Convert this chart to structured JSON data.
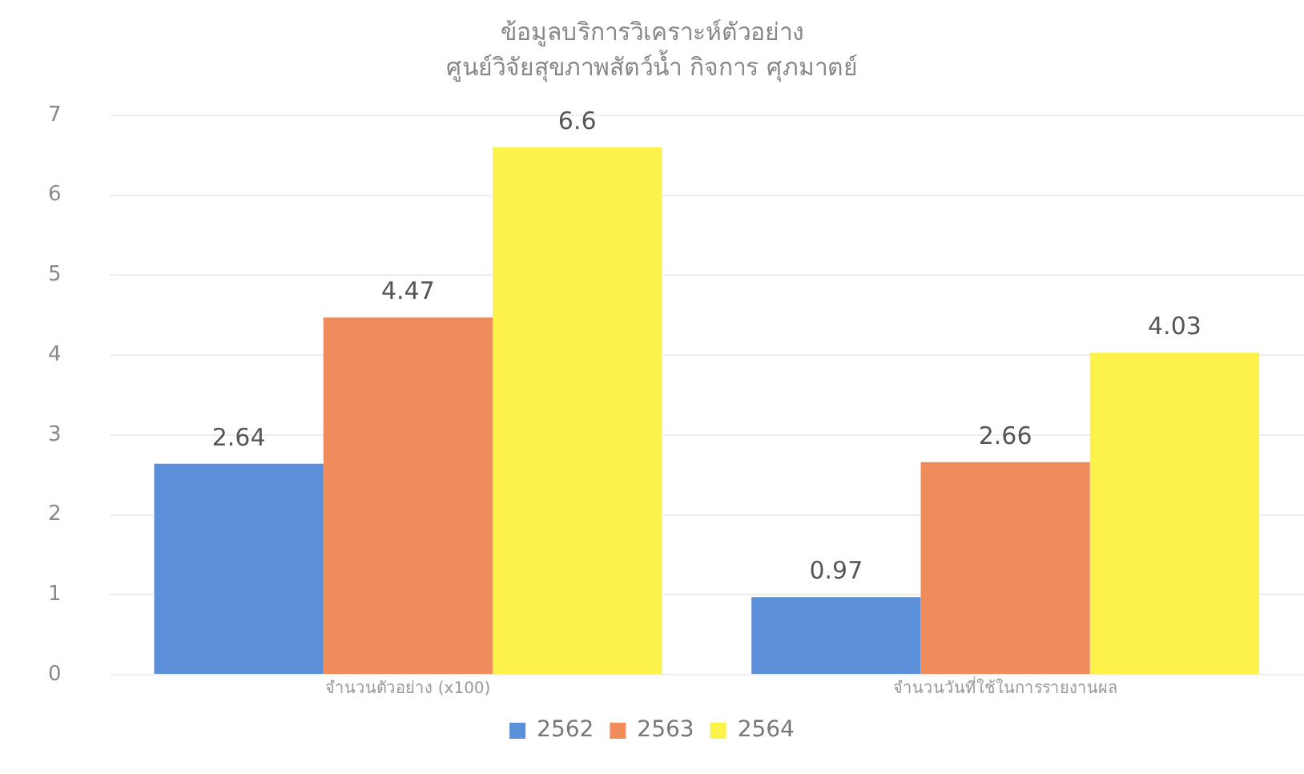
{
  "chart_data": {
    "type": "bar",
    "title": "ข้อมูลบริการวิเคราะห์ตัวอย่าง",
    "subtitle": "ศูนย์วิจัยสุขภาพสัตว์น้ำ กิจการ ศุภมาตย์",
    "categories": [
      "จำนวนตัวอย่าง (x100)",
      "จำนวนวันที่ใช้ในการรายงานผล"
    ],
    "series": [
      {
        "name": "2562",
        "color": "#5b8fd9",
        "values": [
          2.64,
          0.97
        ]
      },
      {
        "name": "2563",
        "color": "#ee8c5c",
        "values": [
          4.47,
          2.66
        ]
      },
      {
        "name": "2564",
        "color": "#fdf24a",
        "values": [
          6.6,
          4.03
        ]
      }
    ],
    "ylim": [
      0,
      7
    ],
    "yticks": [
      0,
      1,
      2,
      3,
      4,
      5,
      6,
      7
    ],
    "grid": "y",
    "legend": "bottom",
    "data_labels": true
  }
}
